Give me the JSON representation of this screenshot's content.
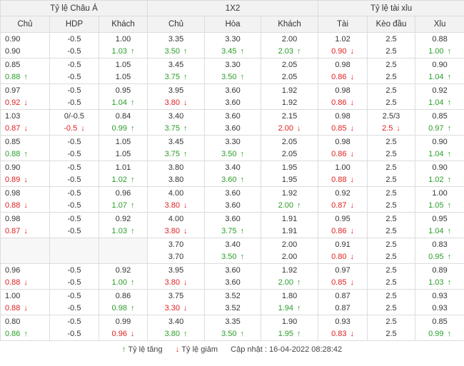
{
  "groups": [
    "Tỷ lệ Châu Á",
    "1X2",
    "Tỷ lệ tài xỉu"
  ],
  "columns": [
    "Chủ",
    "HDP",
    "Khách",
    "Chủ",
    "Hòa",
    "Khách",
    "Tài",
    "Kèo đầu",
    "Xỉu"
  ],
  "rows": [
    [
      [
        [
          "0.90",
          ""
        ],
        [
          "0.90",
          ""
        ]
      ],
      [
        [
          "-0.5",
          ""
        ],
        [
          "-0.5",
          ""
        ]
      ],
      [
        [
          "1.00",
          ""
        ],
        [
          "1.03",
          "up"
        ]
      ],
      [
        [
          "3.35",
          ""
        ],
        [
          "3.50",
          "up"
        ]
      ],
      [
        [
          "3.30",
          ""
        ],
        [
          "3.45",
          "up"
        ]
      ],
      [
        [
          "2.00",
          ""
        ],
        [
          "2.03",
          "up"
        ]
      ],
      [
        [
          "1.02",
          ""
        ],
        [
          "0.90",
          "down"
        ]
      ],
      [
        [
          "2.5",
          ""
        ],
        [
          "2.5",
          ""
        ]
      ],
      [
        [
          "0.88",
          ""
        ],
        [
          "1.00",
          "up"
        ]
      ]
    ],
    [
      [
        [
          "0.85",
          ""
        ],
        [
          "0.88",
          "up"
        ]
      ],
      [
        [
          "-0.5",
          ""
        ],
        [
          "-0.5",
          ""
        ]
      ],
      [
        [
          "1.05",
          ""
        ],
        [
          "1.05",
          ""
        ]
      ],
      [
        [
          "3.45",
          ""
        ],
        [
          "3.75",
          "up"
        ]
      ],
      [
        [
          "3.30",
          ""
        ],
        [
          "3.50",
          "up"
        ]
      ],
      [
        [
          "2.05",
          ""
        ],
        [
          "2.05",
          ""
        ]
      ],
      [
        [
          "0.98",
          ""
        ],
        [
          "0.86",
          "down"
        ]
      ],
      [
        [
          "2.5",
          ""
        ],
        [
          "2.5",
          ""
        ]
      ],
      [
        [
          "0.90",
          ""
        ],
        [
          "1.04",
          "up"
        ]
      ]
    ],
    [
      [
        [
          "0.97",
          ""
        ],
        [
          "0.92",
          "down"
        ]
      ],
      [
        [
          "-0.5",
          ""
        ],
        [
          "-0.5",
          ""
        ]
      ],
      [
        [
          "0.95",
          ""
        ],
        [
          "1.04",
          "up"
        ]
      ],
      [
        [
          "3.95",
          ""
        ],
        [
          "3.80",
          "down"
        ]
      ],
      [
        [
          "3.60",
          ""
        ],
        [
          "3.60",
          ""
        ]
      ],
      [
        [
          "1.92",
          ""
        ],
        [
          "1.92",
          ""
        ]
      ],
      [
        [
          "0.98",
          ""
        ],
        [
          "0.86",
          "down"
        ]
      ],
      [
        [
          "2.5",
          ""
        ],
        [
          "2.5",
          ""
        ]
      ],
      [
        [
          "0.92",
          ""
        ],
        [
          "1.04",
          "up"
        ]
      ]
    ],
    [
      [
        [
          "1.03",
          ""
        ],
        [
          "0.87",
          "down"
        ]
      ],
      [
        [
          "0/-0.5",
          ""
        ],
        [
          "-0.5",
          "down"
        ]
      ],
      [
        [
          "0.84",
          ""
        ],
        [
          "0.99",
          "up"
        ]
      ],
      [
        [
          "3.40",
          ""
        ],
        [
          "3.75",
          "up"
        ]
      ],
      [
        [
          "3.60",
          ""
        ],
        [
          "3.60",
          ""
        ]
      ],
      [
        [
          "2.15",
          ""
        ],
        [
          "2.00",
          "down"
        ]
      ],
      [
        [
          "0.98",
          ""
        ],
        [
          "0.85",
          "down"
        ]
      ],
      [
        [
          "2.5/3",
          ""
        ],
        [
          "2.5",
          "down"
        ]
      ],
      [
        [
          "0.85",
          ""
        ],
        [
          "0.97",
          "up"
        ]
      ]
    ],
    [
      [
        [
          "0.85",
          ""
        ],
        [
          "0.88",
          "up"
        ]
      ],
      [
        [
          "-0.5",
          ""
        ],
        [
          "-0.5",
          ""
        ]
      ],
      [
        [
          "1.05",
          ""
        ],
        [
          "1.05",
          ""
        ]
      ],
      [
        [
          "3.45",
          ""
        ],
        [
          "3.75",
          "up"
        ]
      ],
      [
        [
          "3.30",
          ""
        ],
        [
          "3.50",
          "up"
        ]
      ],
      [
        [
          "2.05",
          ""
        ],
        [
          "2.05",
          ""
        ]
      ],
      [
        [
          "0.98",
          ""
        ],
        [
          "0.86",
          "down"
        ]
      ],
      [
        [
          "2.5",
          ""
        ],
        [
          "2.5",
          ""
        ]
      ],
      [
        [
          "0.90",
          ""
        ],
        [
          "1.04",
          "up"
        ]
      ]
    ],
    [
      [
        [
          "0.90",
          ""
        ],
        [
          "0.89",
          "down"
        ]
      ],
      [
        [
          "-0.5",
          ""
        ],
        [
          "-0.5",
          ""
        ]
      ],
      [
        [
          "1.01",
          ""
        ],
        [
          "1.02",
          "up"
        ]
      ],
      [
        [
          "3.80",
          ""
        ],
        [
          "3.80",
          ""
        ]
      ],
      [
        [
          "3.40",
          ""
        ],
        [
          "3.60",
          "up"
        ]
      ],
      [
        [
          "1.95",
          ""
        ],
        [
          "1.95",
          ""
        ]
      ],
      [
        [
          "1.00",
          ""
        ],
        [
          "0.88",
          "down"
        ]
      ],
      [
        [
          "2.5",
          ""
        ],
        [
          "2.5",
          ""
        ]
      ],
      [
        [
          "0.90",
          ""
        ],
        [
          "1.02",
          "up"
        ]
      ]
    ],
    [
      [
        [
          "0.98",
          ""
        ],
        [
          "0.88",
          "down"
        ]
      ],
      [
        [
          "-0.5",
          ""
        ],
        [
          "-0.5",
          ""
        ]
      ],
      [
        [
          "0.96",
          ""
        ],
        [
          "1.07",
          "up"
        ]
      ],
      [
        [
          "4.00",
          ""
        ],
        [
          "3.80",
          "down"
        ]
      ],
      [
        [
          "3.60",
          ""
        ],
        [
          "3.60",
          ""
        ]
      ],
      [
        [
          "1.92",
          ""
        ],
        [
          "2.00",
          "up"
        ]
      ],
      [
        [
          "0.92",
          ""
        ],
        [
          "0.87",
          "down"
        ]
      ],
      [
        [
          "2.5",
          ""
        ],
        [
          "2.5",
          ""
        ]
      ],
      [
        [
          "1.00",
          ""
        ],
        [
          "1.05",
          "up"
        ]
      ]
    ],
    [
      [
        [
          "0.98",
          ""
        ],
        [
          "0.87",
          "down"
        ]
      ],
      [
        [
          "-0.5",
          ""
        ],
        [
          "-0.5",
          ""
        ]
      ],
      [
        [
          "0.92",
          ""
        ],
        [
          "1.03",
          "up"
        ]
      ],
      [
        [
          "4.00",
          ""
        ],
        [
          "3.80",
          "down"
        ]
      ],
      [
        [
          "3.60",
          ""
        ],
        [
          "3.75",
          "up"
        ]
      ],
      [
        [
          "1.91",
          ""
        ],
        [
          "1.91",
          ""
        ]
      ],
      [
        [
          "0.95",
          ""
        ],
        [
          "0.86",
          "down"
        ]
      ],
      [
        [
          "2.5",
          ""
        ],
        [
          "2.5",
          ""
        ]
      ],
      [
        [
          "0.95",
          ""
        ],
        [
          "1.04",
          "up"
        ]
      ]
    ],
    [
      [
        [
          "",
          ""
        ],
        [
          "",
          ""
        ]
      ],
      [
        [
          "",
          ""
        ],
        [
          "",
          ""
        ]
      ],
      [
        [
          "",
          ""
        ],
        [
          "",
          ""
        ]
      ],
      [
        [
          "3.70",
          ""
        ],
        [
          "3.70",
          ""
        ]
      ],
      [
        [
          "3.40",
          ""
        ],
        [
          "3.50",
          "up"
        ]
      ],
      [
        [
          "2.00",
          ""
        ],
        [
          "2.00",
          ""
        ]
      ],
      [
        [
          "0.91",
          ""
        ],
        [
          "0.80",
          "down"
        ]
      ],
      [
        [
          "2.5",
          ""
        ],
        [
          "2.5",
          ""
        ]
      ],
      [
        [
          "0.83",
          ""
        ],
        [
          "0.95",
          "up"
        ]
      ]
    ],
    [
      [
        [
          "0.96",
          ""
        ],
        [
          "0.88",
          "down"
        ]
      ],
      [
        [
          "-0.5",
          ""
        ],
        [
          "-0.5",
          ""
        ]
      ],
      [
        [
          "0.92",
          ""
        ],
        [
          "1.00",
          "up"
        ]
      ],
      [
        [
          "3.95",
          ""
        ],
        [
          "3.80",
          "down"
        ]
      ],
      [
        [
          "3.60",
          ""
        ],
        [
          "3.60",
          ""
        ]
      ],
      [
        [
          "1.92",
          ""
        ],
        [
          "2.00",
          "up"
        ]
      ],
      [
        [
          "0.97",
          ""
        ],
        [
          "0.85",
          "down"
        ]
      ],
      [
        [
          "2.5",
          ""
        ],
        [
          "2.5",
          ""
        ]
      ],
      [
        [
          "0.89",
          ""
        ],
        [
          "1.03",
          "up"
        ]
      ]
    ],
    [
      [
        [
          "1.00",
          ""
        ],
        [
          "0.88",
          "down"
        ]
      ],
      [
        [
          "-0.5",
          ""
        ],
        [
          "-0.5",
          ""
        ]
      ],
      [
        [
          "0.86",
          ""
        ],
        [
          "0.98",
          "up"
        ]
      ],
      [
        [
          "3.75",
          ""
        ],
        [
          "3.30",
          "down"
        ]
      ],
      [
        [
          "3.52",
          ""
        ],
        [
          "3.52",
          ""
        ]
      ],
      [
        [
          "1.80",
          ""
        ],
        [
          "1.94",
          "up"
        ]
      ],
      [
        [
          "0.87",
          ""
        ],
        [
          "0.87",
          ""
        ]
      ],
      [
        [
          "2.5",
          ""
        ],
        [
          "2.5",
          ""
        ]
      ],
      [
        [
          "0.93",
          ""
        ],
        [
          "0.93",
          ""
        ]
      ]
    ],
    [
      [
        [
          "0.80",
          ""
        ],
        [
          "0.86",
          "up"
        ]
      ],
      [
        [
          "-0.5",
          ""
        ],
        [
          "-0.5",
          ""
        ]
      ],
      [
        [
          "0.99",
          ""
        ],
        [
          "0.96",
          "down"
        ]
      ],
      [
        [
          "3.40",
          ""
        ],
        [
          "3.80",
          "up"
        ]
      ],
      [
        [
          "3.35",
          ""
        ],
        [
          "3.50",
          "up"
        ]
      ],
      [
        [
          "1.90",
          ""
        ],
        [
          "1.95",
          "up"
        ]
      ],
      [
        [
          "0.93",
          ""
        ],
        [
          "0.83",
          "down"
        ]
      ],
      [
        [
          "2.5",
          ""
        ],
        [
          "2.5",
          ""
        ]
      ],
      [
        [
          "0.85",
          ""
        ],
        [
          "0.99",
          "up"
        ]
      ]
    ]
  ],
  "icons": {
    "up": "arrow-up-icon",
    "down": "arrow-down-icon"
  },
  "colors": {
    "up": "#2a9d2a",
    "down": "#e02020",
    "header_bg": "#f2f2f2",
    "border": "#dcdcdc"
  },
  "footer": {
    "up_label": "Tỷ lệ tăng",
    "down_label": "Tỷ lệ giảm",
    "updated_label": "Cập nhật : 16-04-2022 08:28:42"
  }
}
